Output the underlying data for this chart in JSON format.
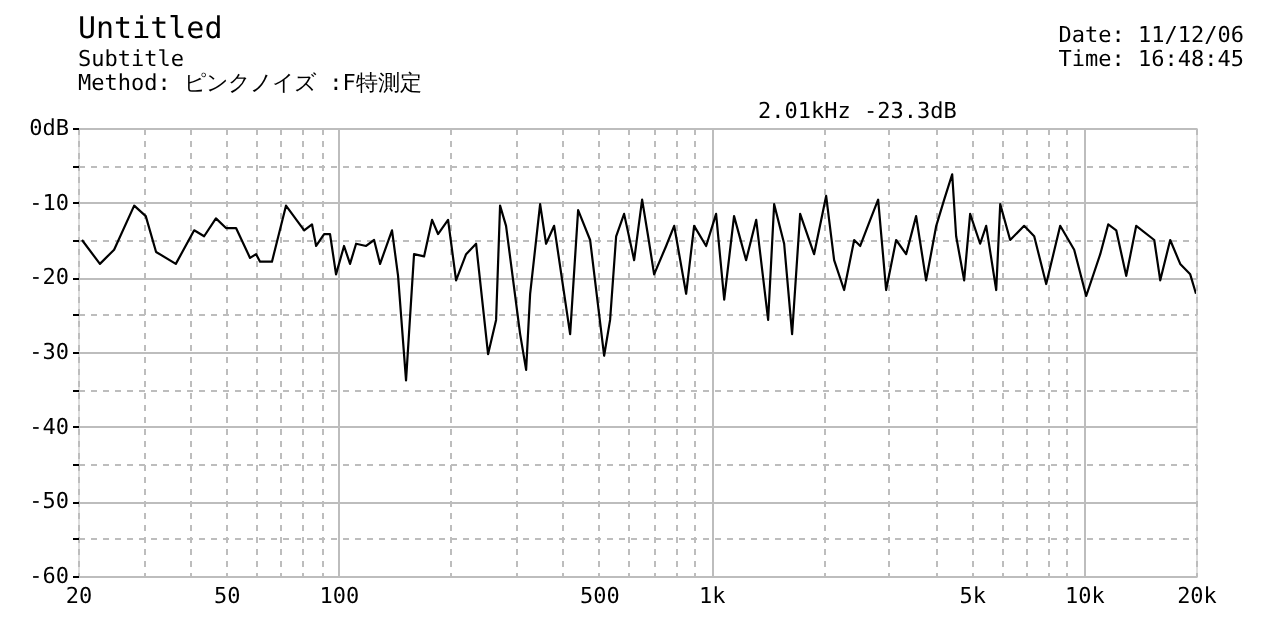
{
  "chart_data": {
    "type": "line",
    "title": "Untitled",
    "subtitle": "Subtitle",
    "annotations": [
      "Method: ピンクノイズ :F特測定",
      "Date: 11/12/06",
      "Time: 16:48:45",
      "2.01kHz    -23.3dB"
    ],
    "x": [
      20.5,
      22.9,
      25.0,
      28.3,
      30.4,
      32.4,
      36.6,
      41.0,
      43.6,
      46.9,
      49.9,
      53.1,
      57.9,
      60.1,
      61.6,
      66.3,
      72.3,
      80.9,
      84.9,
      87.1,
      91.5,
      94.9,
      98.5,
      103.5,
      107.4,
      111.5,
      118.6,
      124.6,
      129.3,
      139.2,
      144.5,
      151.8,
      159.5,
      169.7,
      178.3,
      185.0,
      196.8,
      206.8,
      220.0,
      234.0,
      252.0,
      264.8,
      271.4,
      281.6,
      307.2,
      318.8,
      326.8,
      347.6,
      360.6,
      379.0,
      418.4,
      439.6,
      473.4,
      516.2,
      535.6,
      556.0,
      584.0,
      621.4,
      652.8,
      677.4,
      703.0,
      757.2,
      795.8,
      856.8,
      900.2,
      969.4,
      1031,
      1084,
      1152,
      1241,
      1321,
      1422,
      1476,
      1570,
      1649,
      1733,
      1889,
      2035,
      2138,
      2274,
      2420,
      2512,
      2672,
      2806,
      2948,
      3136,
      3336,
      3548,
      3774,
      4018,
      4220,
      4434,
      4544,
      4774,
      4954,
      5270,
      5470,
      5820,
      5966,
      6344,
      6916,
      7360,
      7926,
      8642,
      9422,
      10148,
      11068,
      11630,
      12218,
      12996,
      13824,
      15452,
      16036,
      17052,
      18142,
      19298,
      20000
    ],
    "values": [
      -15.0,
      -18.2,
      -16.3,
      -10.4,
      -11.8,
      -16.6,
      -18.2,
      -13.7,
      -14.5,
      -12.1,
      -13.4,
      -13.4,
      -17.4,
      -16.9,
      -17.9,
      -17.9,
      -10.4,
      -13.7,
      -12.9,
      -15.8,
      -14.2,
      -14.2,
      -19.6,
      -15.8,
      -18.2,
      -15.5,
      -15.8,
      -15.0,
      -18.2,
      -13.7,
      -19.8,
      -33.8,
      -16.9,
      -17.2,
      -12.3,
      -14.2,
      -12.3,
      -20.4,
      -16.9,
      -15.5,
      -30.3,
      -25.7,
      -10.4,
      -13.1,
      -27.6,
      -32.4,
      -22.2,
      -10.2,
      -15.5,
      -13.1,
      -27.6,
      -11.0,
      -15.0,
      -30.5,
      -25.7,
      -14.5,
      -11.5,
      -17.7,
      -9.6,
      -14.5,
      -19.6,
      -15.8,
      -13.1,
      -22.2,
      -13.1,
      -15.8,
      -11.5,
      -23.0,
      -11.8,
      -17.7,
      -12.3,
      -25.7,
      -10.2,
      -15.5,
      -27.6,
      -11.5,
      -16.9,
      -9.1,
      -17.7,
      -21.7,
      -15.0,
      -15.8,
      -12.3,
      -9.6,
      -21.7,
      -15.0,
      -16.9,
      -11.8,
      -20.4,
      -13.1,
      -9.6,
      -6.2,
      -14.5,
      -20.4,
      -11.5,
      -15.5,
      -13.1,
      -21.7,
      -10.2,
      -15.0,
      -13.1,
      -14.5,
      -20.9,
      -13.1,
      -16.3,
      -22.5,
      -16.9,
      -12.9,
      -13.7,
      -19.8,
      -13.1,
      -15.0,
      -20.4,
      -15.0,
      -18.2,
      -19.6,
      -22.2
    ],
    "color": "#000000",
    "log": "x",
    "marker": "none",
    "line_style": "solid",
    "grid": true,
    "xlim": [
      20,
      20000
    ],
    "xticks": [
      20,
      {
        "value": 30,
        "label": null
      },
      {
        "value": 40,
        "label": null
      },
      50,
      {
        "value": 60,
        "label": null
      },
      {
        "value": 70,
        "label": null
      },
      {
        "value": 80,
        "label": null
      },
      {
        "value": 90,
        "label": null
      },
      100,
      {
        "value": 200,
        "label": null
      },
      {
        "value": 300,
        "label": null
      },
      {
        "value": 400,
        "label": null
      },
      500,
      {
        "value": 600,
        "label": null
      },
      {
        "value": 700,
        "label": null
      },
      {
        "value": 800,
        "label": null
      },
      {
        "value": 900,
        "label": null
      },
      {
        "value": 1000,
        "label": "1k"
      },
      {
        "value": 2000,
        "label": null
      },
      {
        "value": 3000,
        "label": null
      },
      {
        "value": 4000,
        "label": null
      },
      {
        "value": 5000,
        "label": "5k"
      },
      {
        "value": 6000,
        "label": null
      },
      {
        "value": 7000,
        "label": null
      },
      {
        "value": 8000,
        "label": null
      },
      {
        "value": 9000,
        "label": null
      },
      {
        "value": 10000,
        "label": "10k"
      },
      {
        "value": 20000,
        "label": "20k"
      }
    ],
    "ylim": [
      -60,
      0
    ],
    "yticks": [
      {
        "value": 0,
        "label": "0dB"
      },
      {
        "value": -5,
        "label": null
      },
      -10,
      {
        "value": -15,
        "label": null
      },
      -20,
      {
        "value": -25,
        "label": null
      },
      -30,
      {
        "value": -35,
        "label": null
      },
      -40,
      {
        "value": -45,
        "label": null
      },
      -50,
      {
        "value": -55,
        "label": null
      },
      -60
    ]
  }
}
